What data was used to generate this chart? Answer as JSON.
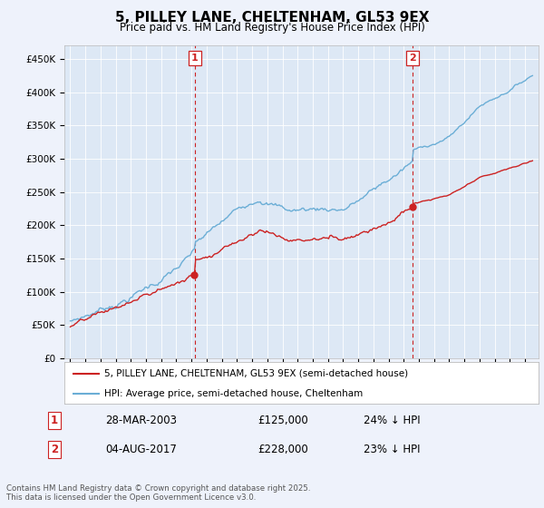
{
  "title": "5, PILLEY LANE, CHELTENHAM, GL53 9EX",
  "subtitle": "Price paid vs. HM Land Registry's House Price Index (HPI)",
  "background_color": "#eef2fb",
  "plot_bg_color": "#dde8f5",
  "ylim": [
    0,
    470000
  ],
  "yticks": [
    0,
    50000,
    100000,
    150000,
    200000,
    250000,
    300000,
    350000,
    400000,
    450000
  ],
  "ytick_labels": [
    "£0",
    "£50K",
    "£100K",
    "£150K",
    "£200K",
    "£250K",
    "£300K",
    "£350K",
    "£400K",
    "£450K"
  ],
  "sale1_date": "28-MAR-2003",
  "sale1_price": 125000,
  "sale1_year": 2003.23,
  "sale1_pct": "24% ↓ HPI",
  "sale2_date": "04-AUG-2017",
  "sale2_price": 228000,
  "sale2_year": 2017.58,
  "sale2_pct": "23% ↓ HPI",
  "legend_line1": "5, PILLEY LANE, CHELTENHAM, GL53 9EX (semi-detached house)",
  "legend_line2": "HPI: Average price, semi-detached house, Cheltenham",
  "footnote": "Contains HM Land Registry data © Crown copyright and database right 2025.\nThis data is licensed under the Open Government Licence v3.0.",
  "hpi_color": "#6baed6",
  "sale_color": "#cc2222",
  "xlim_min": 1994.6,
  "xlim_max": 2025.9
}
